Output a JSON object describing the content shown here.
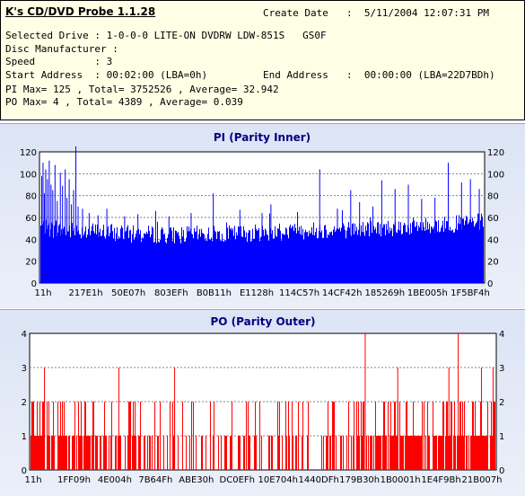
{
  "info": {
    "app_title": "K's CD/DVD Probe 1.1.28",
    "create_date_label": "Create Date",
    "create_date_value": ":  5/11/2004 12:07:31 PM",
    "selected_drive": "Selected Drive : 1-0-0-0 LITE-ON DVDRW LDW-851S   GS0F",
    "disc_manufacturer": "Disc Manufacturer :",
    "speed": "Speed          : 3",
    "start_address": "Start Address  : 00:02:00 (LBA=0h)",
    "end_address_label": "End Address",
    "end_address_value": ":  00:00:00 (LBA=22D7BDh)",
    "pi_summary": "PI Max= 125 , Total= 3752526 , Average= 32.942",
    "po_summary": "PO Max= 4 , Total= 4389 , Average= 0.039"
  },
  "colors": {
    "pi": "#0000ff",
    "po": "#ff0000",
    "grid": "#808080"
  },
  "chart_data": [
    {
      "type": "bar",
      "title": "PI (Parity Inner)",
      "ylim": [
        0,
        120
      ],
      "yticks": [
        0,
        20,
        40,
        60,
        80,
        100,
        120
      ],
      "xtick_labels": [
        "11h",
        "217E1h",
        "50E07h",
        "803EFh",
        "B0B11h",
        "E1128h",
        "114C57h",
        "14CF42h",
        "185269h",
        "1BE005h",
        "1F5BF4h"
      ],
      "grid": true,
      "baseline_profile": [
        [
          0,
          55
        ],
        [
          0.04,
          52
        ],
        [
          0.1,
          52
        ],
        [
          0.2,
          49
        ],
        [
          0.3,
          48
        ],
        [
          0.4,
          49
        ],
        [
          0.5,
          50
        ],
        [
          0.6,
          52
        ],
        [
          0.7,
          53
        ],
        [
          0.8,
          55
        ],
        [
          0.9,
          57
        ],
        [
          1.0,
          60
        ]
      ],
      "spikes": [
        [
          0.003,
          98
        ],
        [
          0.006,
          110
        ],
        [
          0.009,
          82
        ],
        [
          0.012,
          104
        ],
        [
          0.016,
          95
        ],
        [
          0.02,
          112
        ],
        [
          0.024,
          90
        ],
        [
          0.028,
          85
        ],
        [
          0.033,
          108
        ],
        [
          0.038,
          75
        ],
        [
          0.045,
          101
        ],
        [
          0.05,
          89
        ],
        [
          0.056,
          104
        ],
        [
          0.06,
          78
        ],
        [
          0.065,
          95
        ],
        [
          0.07,
          72
        ],
        [
          0.075,
          85
        ],
        [
          0.08,
          125
        ],
        [
          0.085,
          70
        ],
        [
          0.095,
          68
        ],
        [
          0.11,
          64
        ],
        [
          0.13,
          62
        ],
        [
          0.15,
          68
        ],
        [
          0.19,
          61
        ],
        [
          0.22,
          63
        ],
        [
          0.26,
          66
        ],
        [
          0.29,
          61
        ],
        [
          0.34,
          64
        ],
        [
          0.39,
          82
        ],
        [
          0.45,
          67
        ],
        [
          0.5,
          64
        ],
        [
          0.52,
          72
        ],
        [
          0.58,
          65
        ],
        [
          0.63,
          104
        ],
        [
          0.67,
          68
        ],
        [
          0.7,
          85
        ],
        [
          0.72,
          74
        ],
        [
          0.75,
          70
        ],
        [
          0.77,
          94
        ],
        [
          0.8,
          86
        ],
        [
          0.83,
          90
        ],
        [
          0.86,
          77
        ],
        [
          0.89,
          78
        ],
        [
          0.92,
          110
        ],
        [
          0.95,
          92
        ],
        [
          0.97,
          95
        ],
        [
          0.99,
          86
        ]
      ]
    },
    {
      "type": "bar",
      "title": "PO (Parity Outer)",
      "ylim": [
        0,
        4
      ],
      "yticks": [
        0,
        1,
        2,
        3,
        4
      ],
      "xtick_labels": [
        "11h",
        "1FF09h",
        "4E004h",
        "7B64Fh",
        "ABE30h",
        "DC0EFh",
        "10E704h",
        "1440DFh",
        "179B30h",
        "1B0001h",
        "1E4F9Bh",
        "21B007h"
      ],
      "grid": true,
      "level_profile": [
        [
          0,
          0.95
        ],
        [
          0.2,
          0.45
        ],
        [
          0.45,
          0.4
        ],
        [
          0.6,
          0.5
        ],
        [
          0.75,
          0.7
        ],
        [
          1.0,
          0.95
        ]
      ],
      "spikes": [
        [
          0.03,
          3
        ],
        [
          0.19,
          3
        ],
        [
          0.31,
          3
        ],
        [
          0.72,
          4
        ],
        [
          0.79,
          3
        ],
        [
          0.9,
          3
        ],
        [
          0.92,
          4
        ],
        [
          0.97,
          3
        ],
        [
          0.995,
          3
        ]
      ]
    }
  ]
}
